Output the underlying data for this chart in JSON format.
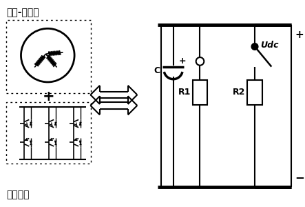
{
  "bg_color": "#ffffff",
  "line_color": "#000000",
  "label_qidong": "起动-发电机",
  "label_qudong": "驱动电路",
  "label_C": "C",
  "label_plus_cap": "+",
  "label_R1": "R1",
  "label_R2": "R2",
  "label_Udc": "Udc",
  "label_plus_right": "+",
  "label_minus_right": "−",
  "figsize": [
    4.43,
    3.0
  ],
  "dpi": 100
}
